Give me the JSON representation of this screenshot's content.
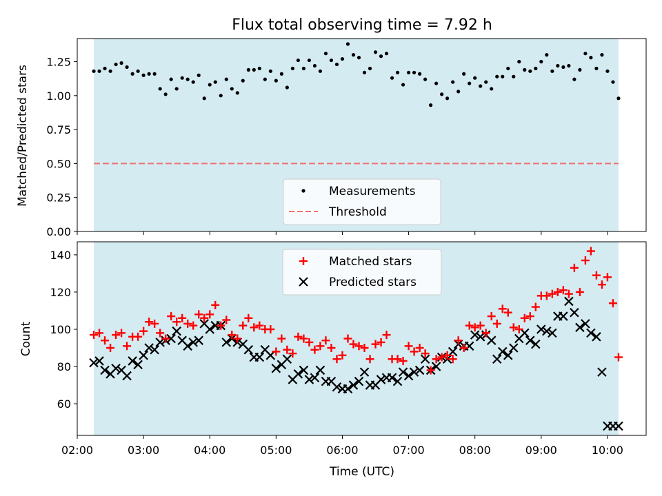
{
  "colors": {
    "observing_band": "#add8e6",
    "measurement": "#000000",
    "threshold": "#f07070",
    "matched": "#ff0000",
    "predicted": "#000000"
  },
  "chart_data": [
    {
      "type": "scatter",
      "title": "Flux total observing time = 7.92 h",
      "xlabel": "",
      "ylabel": "Matched/Predicted stars",
      "xlim": [
        "02:00",
        "10:35"
      ],
      "ylim": [
        0,
        1.42
      ],
      "yticks": [
        "0.00",
        "0.25",
        "0.50",
        "0.75",
        "1.00",
        "1.25"
      ],
      "observing_band": [
        "02:15",
        "10:10"
      ],
      "threshold": 0.5,
      "legend_position": "lower center",
      "legend": [
        "Measurements",
        "Threshold"
      ],
      "series": [
        {
          "name": "Measurements",
          "x": [
            "02:15",
            "02:20",
            "02:25",
            "02:30",
            "02:35",
            "02:40",
            "02:45",
            "02:50",
            "02:55",
            "03:00",
            "03:05",
            "03:10",
            "03:15",
            "03:20",
            "03:25",
            "03:30",
            "03:35",
            "03:40",
            "03:45",
            "03:50",
            "03:55",
            "04:00",
            "04:05",
            "04:10",
            "04:15",
            "04:20",
            "04:25",
            "04:30",
            "04:35",
            "04:40",
            "04:45",
            "04:50",
            "04:55",
            "05:00",
            "05:05",
            "05:10",
            "05:15",
            "05:20",
            "05:25",
            "05:30",
            "05:35",
            "05:40",
            "05:45",
            "05:50",
            "05:55",
            "06:00",
            "06:05",
            "06:10",
            "06:15",
            "06:20",
            "06:25",
            "06:30",
            "06:35",
            "06:40",
            "06:45",
            "06:50",
            "06:55",
            "07:00",
            "07:05",
            "07:10",
            "07:15",
            "07:20",
            "07:25",
            "07:30",
            "07:35",
            "07:40",
            "07:45",
            "07:50",
            "07:55",
            "08:00",
            "08:05",
            "08:10",
            "08:15",
            "08:20",
            "08:25",
            "08:30",
            "08:35",
            "08:40",
            "08:45",
            "08:50",
            "08:55",
            "09:00",
            "09:05",
            "09:10",
            "09:15",
            "09:20",
            "09:25",
            "09:30",
            "09:35",
            "09:40",
            "09:45",
            "09:50",
            "09:55",
            "10:00",
            "10:05",
            "10:10"
          ],
          "y": [
            1.18,
            1.18,
            1.2,
            1.18,
            1.23,
            1.24,
            1.21,
            1.16,
            1.18,
            1.15,
            1.16,
            1.16,
            1.05,
            1.01,
            1.12,
            1.05,
            1.13,
            1.12,
            1.1,
            1.15,
            0.98,
            1.08,
            1.1,
            1.0,
            1.12,
            1.05,
            1.02,
            1.11,
            1.19,
            1.19,
            1.2,
            1.12,
            1.18,
            1.11,
            1.16,
            1.06,
            1.2,
            1.26,
            1.2,
            1.26,
            1.22,
            1.18,
            1.31,
            1.26,
            1.23,
            1.27,
            1.38,
            1.3,
            1.28,
            1.17,
            1.2,
            1.32,
            1.29,
            1.31,
            1.13,
            1.17,
            1.08,
            1.17,
            1.17,
            1.16,
            1.12,
            0.93,
            1.09,
            1.01,
            0.98,
            1.1,
            1.03,
            1.16,
            1.09,
            1.13,
            1.07,
            1.1,
            1.05,
            1.14,
            1.14,
            1.2,
            1.14,
            1.25,
            1.19,
            1.18,
            1.2,
            1.25,
            1.3,
            1.18,
            1.22,
            1.21,
            1.22,
            1.12,
            1.19,
            1.31,
            1.28,
            1.2,
            1.3,
            1.18,
            1.1,
            0.98
          ]
        }
      ]
    },
    {
      "type": "scatter",
      "title": "",
      "xlabel": "Time (UTC)",
      "ylabel": "Count",
      "xlim": [
        "02:00",
        "10:35"
      ],
      "ylim": [
        43,
        147
      ],
      "xticks": [
        "02:00",
        "03:00",
        "04:00",
        "05:00",
        "06:00",
        "07:00",
        "08:00",
        "09:00",
        "10:00"
      ],
      "yticks": [
        "60",
        "80",
        "100",
        "120",
        "140"
      ],
      "observing_band": [
        "02:15",
        "10:10"
      ],
      "legend_position": "upper center",
      "legend": [
        "Matched stars",
        "Predicted stars"
      ],
      "series": [
        {
          "name": "Matched stars",
          "marker": "+",
          "x": [
            "02:15",
            "02:20",
            "02:25",
            "02:30",
            "02:35",
            "02:40",
            "02:45",
            "02:50",
            "02:55",
            "03:00",
            "03:05",
            "03:10",
            "03:15",
            "03:20",
            "03:25",
            "03:30",
            "03:35",
            "03:40",
            "03:45",
            "03:50",
            "03:55",
            "04:00",
            "04:05",
            "04:10",
            "04:15",
            "04:20",
            "04:25",
            "04:30",
            "04:35",
            "04:40",
            "04:45",
            "04:50",
            "04:55",
            "05:00",
            "05:05",
            "05:10",
            "05:15",
            "05:20",
            "05:25",
            "05:30",
            "05:35",
            "05:40",
            "05:45",
            "05:50",
            "05:55",
            "06:00",
            "06:05",
            "06:10",
            "06:15",
            "06:20",
            "06:25",
            "06:30",
            "06:35",
            "06:40",
            "06:45",
            "06:50",
            "06:55",
            "07:00",
            "07:05",
            "07:10",
            "07:15",
            "07:20",
            "07:25",
            "07:30",
            "07:35",
            "07:40",
            "07:45",
            "07:50",
            "07:55",
            "08:00",
            "08:05",
            "08:10",
            "08:15",
            "08:20",
            "08:25",
            "08:30",
            "08:35",
            "08:40",
            "08:45",
            "08:50",
            "08:55",
            "09:00",
            "09:05",
            "09:10",
            "09:15",
            "09:20",
            "09:25",
            "09:30",
            "09:35",
            "09:40",
            "09:45",
            "09:50",
            "09:55",
            "10:00",
            "10:05",
            "10:10"
          ],
          "y": [
            97,
            98,
            94,
            90,
            97,
            98,
            91,
            96,
            96,
            99,
            104,
            103,
            98,
            95,
            107,
            104,
            106,
            103,
            102,
            108,
            106,
            108,
            113,
            102,
            105,
            97,
            95,
            102,
            106,
            101,
            102,
            100,
            100,
            88,
            95,
            89,
            87,
            96,
            95,
            93,
            89,
            91,
            94,
            90,
            84,
            86,
            95,
            92,
            91,
            90,
            84,
            92,
            93,
            97,
            84,
            84,
            83,
            91,
            88,
            90,
            87,
            78,
            84,
            85,
            86,
            84,
            94,
            90,
            102,
            101,
            102,
            98,
            107,
            103,
            111,
            109,
            101,
            100,
            106,
            107,
            112,
            118,
            118,
            119,
            120,
            121,
            119,
            133,
            120,
            137,
            142,
            129,
            124,
            128,
            114,
            85
          ]
        },
        {
          "name": "Predicted stars",
          "marker": "x",
          "x": [
            "02:15",
            "02:20",
            "02:25",
            "02:30",
            "02:35",
            "02:40",
            "02:45",
            "02:50",
            "02:55",
            "03:00",
            "03:05",
            "03:10",
            "03:15",
            "03:20",
            "03:25",
            "03:30",
            "03:35",
            "03:40",
            "03:45",
            "03:50",
            "03:55",
            "04:00",
            "04:05",
            "04:10",
            "04:15",
            "04:20",
            "04:25",
            "04:30",
            "04:35",
            "04:40",
            "04:45",
            "04:50",
            "04:55",
            "05:00",
            "05:05",
            "05:10",
            "05:15",
            "05:20",
            "05:25",
            "05:30",
            "05:35",
            "05:40",
            "05:45",
            "05:50",
            "05:55",
            "06:00",
            "06:05",
            "06:10",
            "06:15",
            "06:20",
            "06:25",
            "06:30",
            "06:35",
            "06:40",
            "06:45",
            "06:50",
            "06:55",
            "07:00",
            "07:05",
            "07:10",
            "07:15",
            "07:20",
            "07:25",
            "07:30",
            "07:35",
            "07:40",
            "07:45",
            "07:50",
            "07:55",
            "08:00",
            "08:05",
            "08:10",
            "08:15",
            "08:20",
            "08:25",
            "08:30",
            "08:35",
            "08:40",
            "08:45",
            "08:50",
            "08:55",
            "09:00",
            "09:05",
            "09:10",
            "09:15",
            "09:20",
            "09:25",
            "09:30",
            "09:35",
            "09:40",
            "09:45",
            "09:50",
            "09:55",
            "10:00",
            "10:05",
            "10:10"
          ],
          "y": [
            82,
            83,
            78,
            76,
            79,
            78,
            75,
            83,
            81,
            86,
            90,
            89,
            93,
            94,
            95,
            99,
            94,
            91,
            93,
            94,
            103,
            100,
            102,
            102,
            93,
            95,
            93,
            92,
            89,
            85,
            85,
            89,
            86,
            79,
            81,
            84,
            73,
            76,
            78,
            73,
            74,
            78,
            72,
            72,
            69,
            68,
            68,
            70,
            72,
            77,
            70,
            70,
            73,
            74,
            74,
            72,
            77,
            75,
            77,
            78,
            84,
            78,
            80,
            85,
            84,
            88,
            92,
            91,
            91,
            97,
            96,
            97,
            94,
            84,
            88,
            86,
            90,
            95,
            98,
            94,
            92,
            100,
            99,
            98,
            107,
            107,
            115,
            109,
            101,
            103,
            98,
            96,
            77,
            48,
            48,
            48
          ]
        }
      ]
    }
  ]
}
